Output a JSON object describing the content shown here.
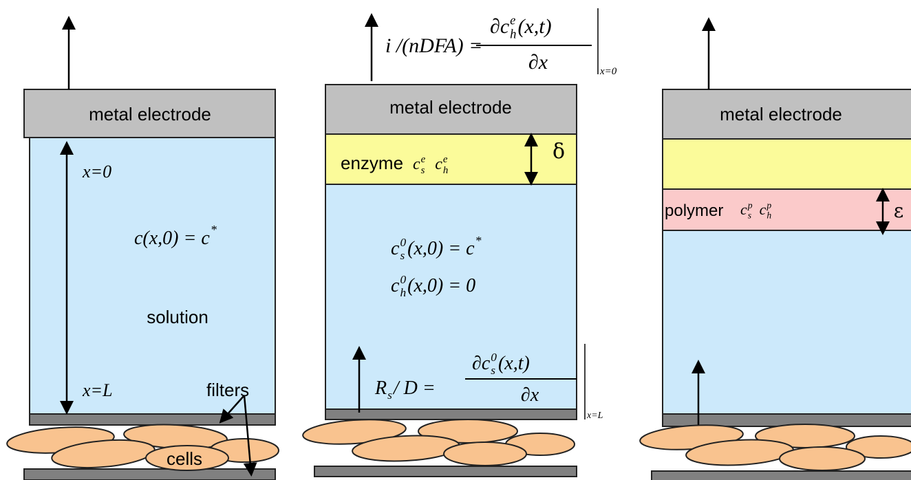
{
  "panels": [
    {
      "electrode": "metal electrode",
      "x_start": "x=0",
      "initial_condition": {
        "lhs": "c(x,0) = c",
        "sup": "*"
      },
      "medium": "solution",
      "x_end": "x=L",
      "filters": "filters",
      "cells": "cells"
    },
    {
      "flux_equation": {
        "lhs": "i /(nDFA) =",
        "numerator": {
          "base": "∂c",
          "sub": "h",
          "sup": "e",
          "args": "(x,t)"
        },
        "denominator": "∂x",
        "eval": "x=0"
      },
      "electrode": "metal electrode",
      "layer": "enzyme",
      "layer_species": [
        {
          "base": "c",
          "sub": "s",
          "sup": "e"
        },
        {
          "base": "c",
          "sub": "h",
          "sup": "e"
        }
      ],
      "thickness": "δ",
      "initial_conditions": [
        {
          "base": "c",
          "sub": "s",
          "sup": "0",
          "rest": "(x,0) = c",
          "rest_sup": "*"
        },
        {
          "base": "c",
          "sub": "h",
          "sup": "0",
          "rest": "(x,0) = 0"
        }
      ],
      "boundary_equation": {
        "base": "R",
        "sub": "s",
        "rest": "/ D =",
        "numerator": {
          "base": "∂c",
          "sub": "s",
          "sup": "0",
          "args": "(x,t)"
        },
        "denominator": "∂x",
        "eval": "x=L"
      }
    },
    {
      "electrode": "metal electrode",
      "layer": "polymer",
      "layer_species": [
        {
          "base": "c",
          "sub": "s",
          "sup": "p"
        },
        {
          "base": "c",
          "sub": "h",
          "sup": "p"
        }
      ],
      "thickness": "ε"
    }
  ]
}
